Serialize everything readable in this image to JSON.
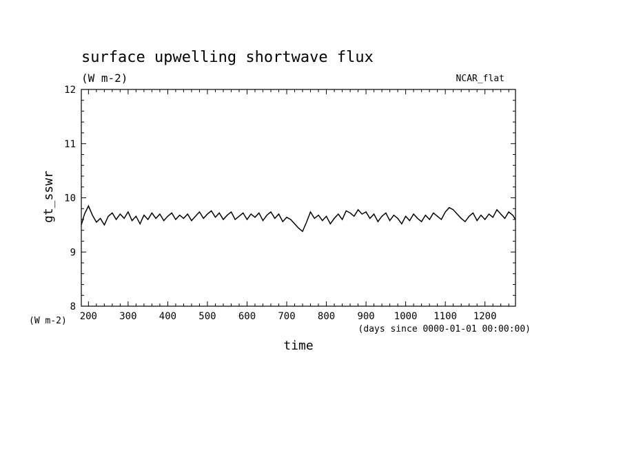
{
  "chart_data": {
    "type": "line",
    "title": "surface upwelling shortwave flux",
    "units_label": "(W m-2)",
    "annotation": "NCAR_flat",
    "xlabel": "time",
    "x_units": "(days since 0000-01-01 00:00:00)",
    "ylabel": "gt_sswr",
    "y_units": "(W m-2)",
    "xlim": [
      182,
      1277
    ],
    "ylim": [
      8,
      12
    ],
    "x_ticks": [
      "200",
      "300",
      "400",
      "500",
      "600",
      "700",
      "800",
      "900",
      "1000",
      "1100",
      "1200"
    ],
    "y_ticks": [
      "8",
      "9",
      "10",
      "11",
      "12"
    ],
    "grid": false,
    "series": [
      {
        "line_color": "#000000",
        "x": [
          182,
          190,
          200,
          210,
          220,
          230,
          240,
          250,
          260,
          270,
          280,
          290,
          300,
          310,
          320,
          330,
          340,
          350,
          360,
          370,
          380,
          390,
          400,
          410,
          420,
          430,
          440,
          450,
          460,
          470,
          480,
          490,
          500,
          510,
          520,
          530,
          540,
          550,
          560,
          570,
          580,
          590,
          600,
          610,
          620,
          630,
          640,
          650,
          660,
          670,
          680,
          690,
          700,
          710,
          720,
          730,
          740,
          750,
          760,
          770,
          780,
          790,
          800,
          810,
          820,
          830,
          840,
          850,
          860,
          870,
          880,
          890,
          900,
          910,
          920,
          930,
          940,
          950,
          960,
          970,
          980,
          990,
          1000,
          1010,
          1020,
          1030,
          1040,
          1050,
          1060,
          1070,
          1080,
          1090,
          1100,
          1110,
          1120,
          1130,
          1140,
          1150,
          1160,
          1170,
          1180,
          1190,
          1200,
          1210,
          1220,
          1230,
          1240,
          1250,
          1260,
          1270,
          1277
        ],
        "y": [
          9.5,
          9.7,
          9.85,
          9.68,
          9.55,
          9.62,
          9.5,
          9.66,
          9.72,
          9.6,
          9.7,
          9.62,
          9.74,
          9.58,
          9.66,
          9.52,
          9.68,
          9.6,
          9.72,
          9.62,
          9.7,
          9.58,
          9.66,
          9.72,
          9.6,
          9.68,
          9.62,
          9.7,
          9.58,
          9.66,
          9.74,
          9.62,
          9.7,
          9.76,
          9.64,
          9.72,
          9.6,
          9.68,
          9.74,
          9.6,
          9.66,
          9.72,
          9.6,
          9.7,
          9.64,
          9.72,
          9.58,
          9.68,
          9.74,
          9.62,
          9.7,
          9.56,
          9.64,
          9.6,
          9.52,
          9.44,
          9.38,
          9.55,
          9.74,
          9.62,
          9.68,
          9.58,
          9.66,
          9.52,
          9.62,
          9.7,
          9.6,
          9.76,
          9.72,
          9.66,
          9.78,
          9.7,
          9.74,
          9.62,
          9.7,
          9.56,
          9.66,
          9.72,
          9.58,
          9.68,
          9.62,
          9.52,
          9.66,
          9.58,
          9.7,
          9.62,
          9.56,
          9.68,
          9.6,
          9.72,
          9.66,
          9.6,
          9.74,
          9.82,
          9.78,
          9.7,
          9.62,
          9.56,
          9.66,
          9.72,
          9.58,
          9.68,
          9.6,
          9.7,
          9.64,
          9.78,
          9.7,
          9.62,
          9.74,
          9.68,
          9.6
        ]
      }
    ]
  }
}
